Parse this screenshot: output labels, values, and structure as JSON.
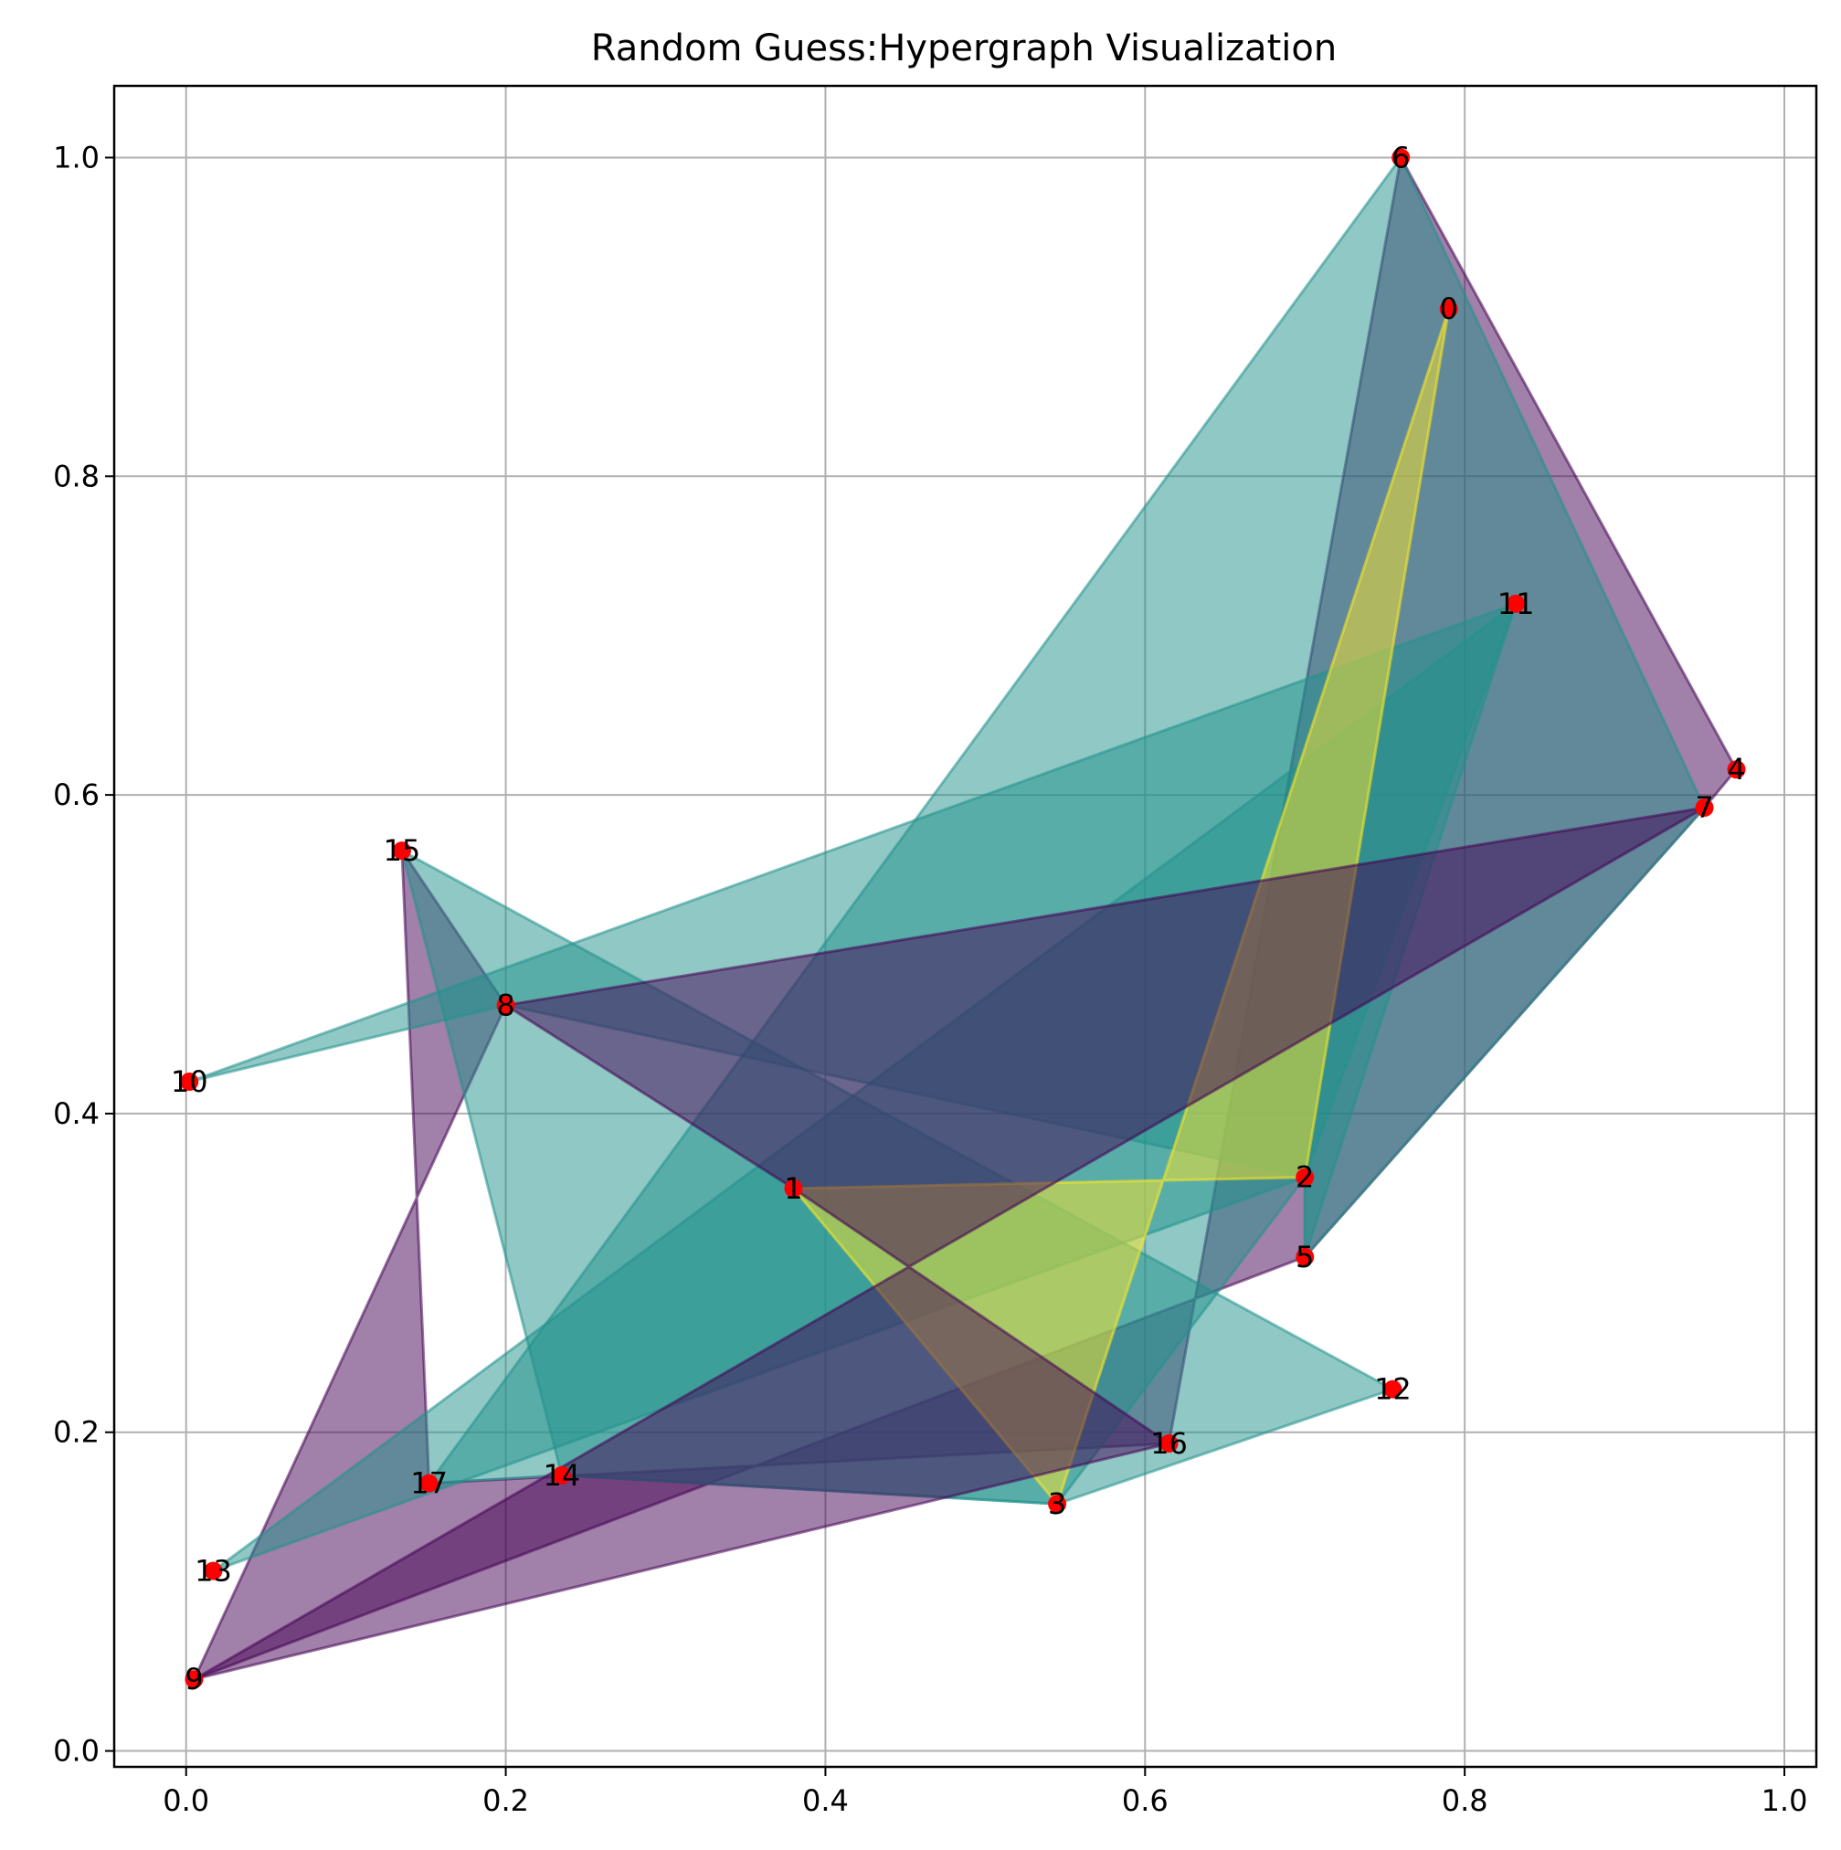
{
  "chart_data": {
    "type": "hypergraph",
    "title": "Random Guess:Hypergraph Visualization",
    "xlabel": "",
    "ylabel": "",
    "xlim": [
      -0.045,
      1.02
    ],
    "ylim": [
      -0.01,
      1.045
    ],
    "x_ticks": [
      "0.0",
      "0.2",
      "0.4",
      "0.6",
      "0.8",
      "1.0"
    ],
    "y_ticks": [
      "0.0",
      "0.2",
      "0.4",
      "0.6",
      "0.8",
      "1.0"
    ],
    "grid": true,
    "node_color": "#ff0000",
    "nodes": [
      {
        "id": "0",
        "x": 0.79,
        "y": 0.905
      },
      {
        "id": "1",
        "x": 0.38,
        "y": 0.353
      },
      {
        "id": "2",
        "x": 0.7,
        "y": 0.36
      },
      {
        "id": "3",
        "x": 0.545,
        "y": 0.155
      },
      {
        "id": "4",
        "x": 0.97,
        "y": 0.616
      },
      {
        "id": "5",
        "x": 0.7,
        "y": 0.31
      },
      {
        "id": "6",
        "x": 0.76,
        "y": 1.0
      },
      {
        "id": "7",
        "x": 0.95,
        "y": 0.592
      },
      {
        "id": "8",
        "x": 0.2,
        "y": 0.468
      },
      {
        "id": "9",
        "x": 0.005,
        "y": 0.045
      },
      {
        "id": "10",
        "x": 0.002,
        "y": 0.42
      },
      {
        "id": "11",
        "x": 0.832,
        "y": 0.72
      },
      {
        "id": "12",
        "x": 0.755,
        "y": 0.227
      },
      {
        "id": "13",
        "x": 0.017,
        "y": 0.113
      },
      {
        "id": "14",
        "x": 0.235,
        "y": 0.173
      },
      {
        "id": "15",
        "x": 0.135,
        "y": 0.565
      },
      {
        "id": "16",
        "x": 0.615,
        "y": 0.193
      },
      {
        "id": "17",
        "x": 0.152,
        "y": 0.168
      }
    ],
    "hyperedges": [
      {
        "nodes": [
          "6",
          "4",
          "7",
          "5",
          "9",
          "8",
          "15",
          "17",
          "16"
        ],
        "color": "#440154"
      },
      {
        "nodes": [
          "10",
          "11",
          "2",
          "8"
        ],
        "color": "#21918c"
      },
      {
        "nodes": [
          "15",
          "12",
          "3",
          "14"
        ],
        "color": "#21918c"
      },
      {
        "nodes": [
          "6",
          "7",
          "5",
          "2",
          "3",
          "14",
          "17"
        ],
        "color": "#21918c"
      },
      {
        "nodes": [
          "11",
          "13",
          "2",
          "5"
        ],
        "color": "#21918c"
      },
      {
        "nodes": [
          "0",
          "3",
          "1",
          "2"
        ],
        "color": "#fde725"
      },
      {
        "nodes": [
          "8",
          "7",
          "9",
          "16",
          "1"
        ],
        "color": "#440154"
      }
    ]
  }
}
